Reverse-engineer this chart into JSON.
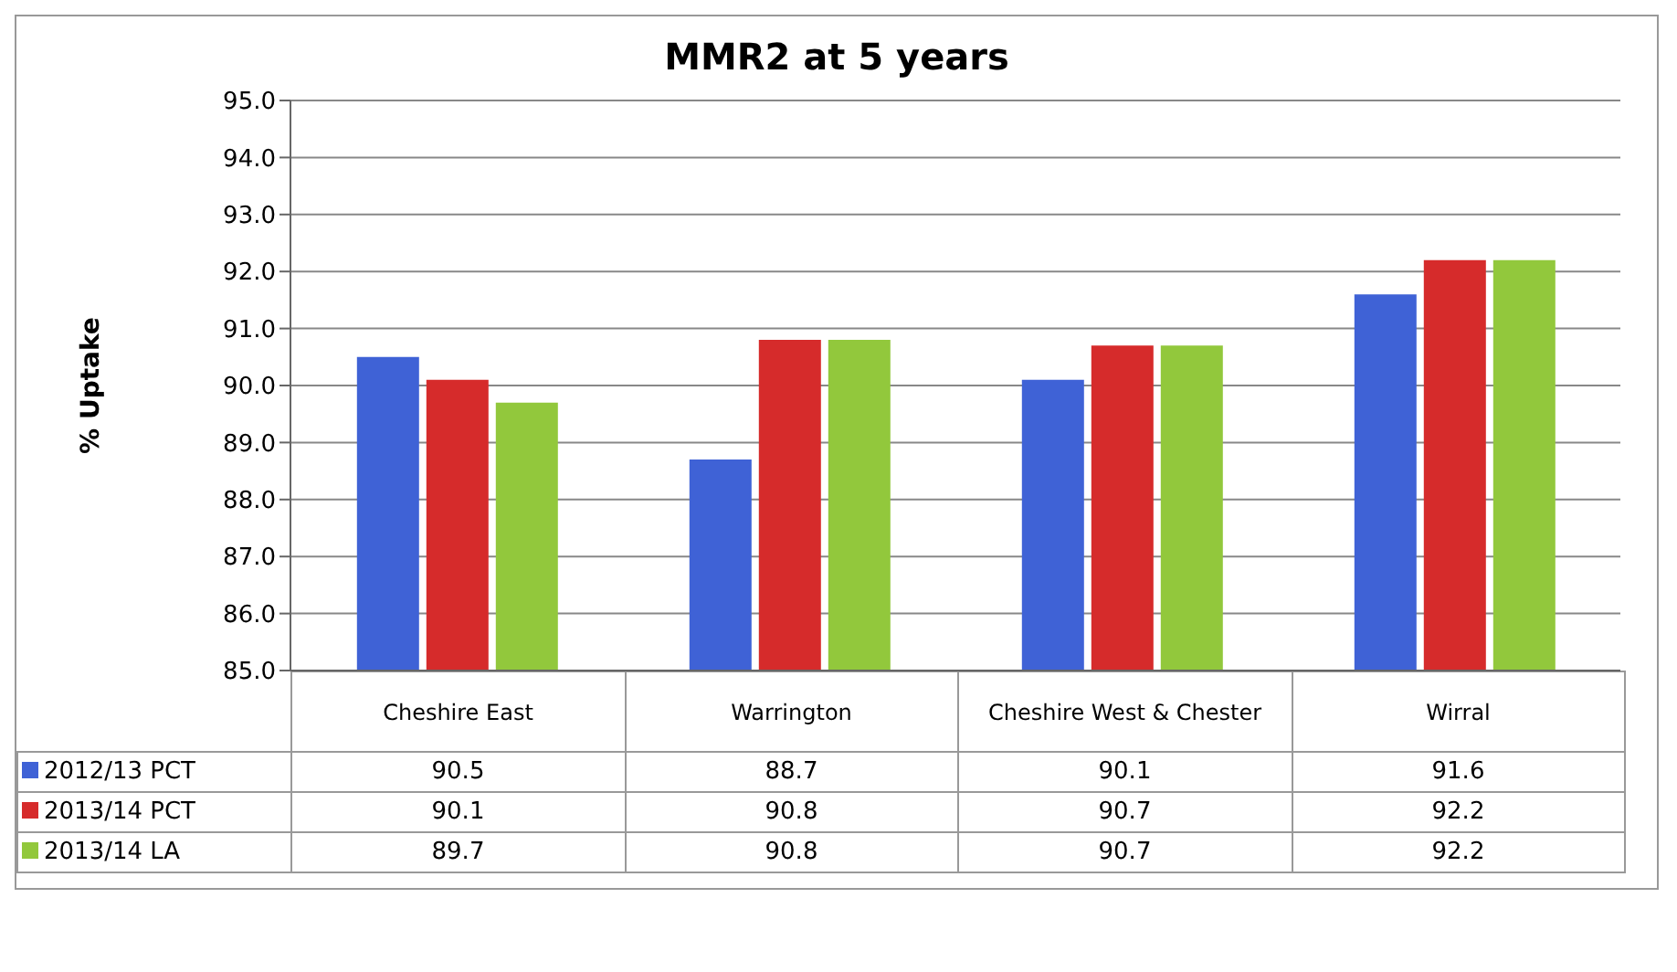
{
  "chart_data": {
    "type": "bar",
    "title": "MMR2 at 5 years",
    "ylabel": "% Uptake",
    "categories": [
      "Cheshire East",
      "Warrington",
      "Cheshire West & Chester",
      "Wirral"
    ],
    "series": [
      {
        "name": "2012/13 PCT",
        "color": "#3f62d6",
        "values": [
          90.5,
          88.7,
          90.1,
          91.6
        ]
      },
      {
        "name": "2013/14 PCT",
        "color": "#d62b2b",
        "values": [
          90.1,
          90.8,
          90.7,
          92.2
        ]
      },
      {
        "name": "2013/14 LA",
        "color": "#92c83c",
        "values": [
          89.7,
          90.8,
          90.7,
          92.2
        ]
      }
    ],
    "ylim": [
      85,
      95
    ],
    "yticks": [
      {
        "value": 85,
        "label": "85.0"
      },
      {
        "value": 86,
        "label": "86.0"
      },
      {
        "value": 87,
        "label": "87.0"
      },
      {
        "value": 88,
        "label": "88.0"
      },
      {
        "value": 89,
        "label": "89.0"
      },
      {
        "value": 90,
        "label": "90.0"
      },
      {
        "value": 91,
        "label": "91.0"
      },
      {
        "value": 92,
        "label": "92.0"
      },
      {
        "value": 93,
        "label": "93.0"
      },
      {
        "value": 94,
        "label": "94.0"
      },
      {
        "value": 95,
        "label": "95.0"
      }
    ],
    "grid": "y",
    "legend": "bottom",
    "data_labels": true
  }
}
